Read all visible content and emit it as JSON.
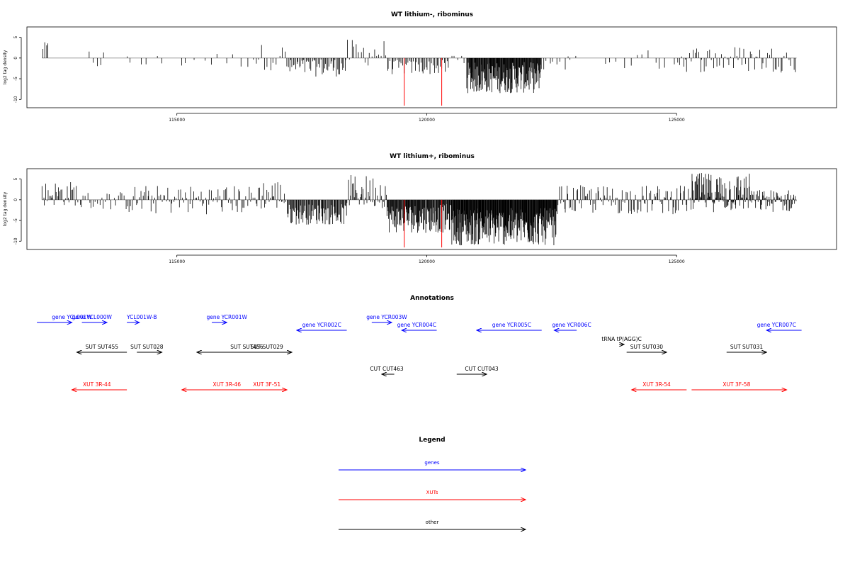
{
  "colors": {
    "gene": "#0000ff",
    "xut": "#ff0000",
    "other": "#000000",
    "axis": "#000000",
    "baseline": "#808080",
    "marker": "#ff0000"
  },
  "chart_data": [
    {
      "type": "bar",
      "title": "WT lithium-, ribominus",
      "xlabel": "",
      "ylabel": "log2 tag density",
      "xlim": [
        112000,
        128200
      ],
      "ylim": [
        -12,
        7.5
      ],
      "xticks": [
        115000,
        120000,
        125000
      ],
      "xtick_labels": [
        "115000",
        "120000",
        "125000"
      ],
      "yticks": [
        5,
        0,
        -5,
        -10
      ],
      "ytick_labels": [
        "5",
        "0",
        "-5",
        "-10"
      ],
      "grid": false,
      "markers": [
        {
          "x": 119550,
          "y": -11.5
        },
        {
          "x": 120300,
          "y": -11.5
        }
      ],
      "series": [
        {
          "segments": [
            {
              "from": 112300,
              "to": 112450,
              "bins": 4,
              "min": 1.5,
              "max": 3.8
            },
            {
              "from": 113200,
              "to": 113600,
              "bins": 5,
              "min": -3,
              "max": 2.5
            },
            {
              "from": 113900,
              "to": 114800,
              "bins": 6,
              "min": -3,
              "max": 1
            },
            {
              "from": 115000,
              "to": 116500,
              "bins": 10,
              "min": -2.5,
              "max": 1.5
            },
            {
              "from": 116500,
              "to": 117200,
              "bins": 12,
              "min": -3,
              "max": 3.5
            },
            {
              "from": 117200,
              "to": 118400,
              "bins": 50,
              "min": -4.5,
              "max": 0
            },
            {
              "from": 118400,
              "to": 119200,
              "bins": 18,
              "min": -2,
              "max": 4.5
            },
            {
              "from": 119200,
              "to": 120450,
              "bins": 45,
              "min": -4,
              "max": -0.5
            },
            {
              "from": 120450,
              "to": 120800,
              "bins": 5,
              "min": -2,
              "max": 1
            },
            {
              "from": 120800,
              "to": 122300,
              "bins": 160,
              "min": -8.5,
              "max": -1
            },
            {
              "from": 122300,
              "to": 123000,
              "bins": 10,
              "min": -3,
              "max": 1
            },
            {
              "from": 123500,
              "to": 125000,
              "bins": 12,
              "min": -3,
              "max": 2
            },
            {
              "from": 125000,
              "to": 127300,
              "bins": 60,
              "min": -3.5,
              "max": 3
            },
            {
              "from": 127350,
              "to": 127400,
              "bins": 2,
              "min": -3.8,
              "max": -2.5
            }
          ]
        }
      ]
    },
    {
      "type": "bar",
      "title": "WT lithium+, ribominus",
      "xlabel": "",
      "ylabel": "log2 tag density",
      "xlim": [
        112000,
        128200
      ],
      "ylim": [
        -12,
        7.5
      ],
      "xticks": [
        115000,
        120000,
        125000
      ],
      "xtick_labels": [
        "115000",
        "120000",
        "125000"
      ],
      "yticks": [
        5,
        0,
        -5,
        -10
      ],
      "ytick_labels": [
        "5",
        "0",
        "-5",
        "-10"
      ],
      "grid": false,
      "markers": [
        {
          "x": 119550,
          "y": -11.5
        },
        {
          "x": 120300,
          "y": -11.5
        }
      ],
      "series": [
        {
          "segments": [
            {
              "from": 112300,
              "to": 113000,
              "bins": 30,
              "min": -1.5,
              "max": 4.5
            },
            {
              "from": 113000,
              "to": 114000,
              "bins": 25,
              "min": -2.5,
              "max": 2
            },
            {
              "from": 114000,
              "to": 116600,
              "bins": 90,
              "min": -3.5,
              "max": 3.5
            },
            {
              "from": 116600,
              "to": 117200,
              "bins": 25,
              "min": -2.5,
              "max": 5
            },
            {
              "from": 117200,
              "to": 118400,
              "bins": 80,
              "min": -6,
              "max": -1
            },
            {
              "from": 118400,
              "to": 119200,
              "bins": 40,
              "min": -2,
              "max": 6
            },
            {
              "from": 119200,
              "to": 120500,
              "bins": 120,
              "min": -8,
              "max": -1
            },
            {
              "from": 120500,
              "to": 122600,
              "bins": 260,
              "min": -11,
              "max": -2
            },
            {
              "from": 122600,
              "to": 125300,
              "bins": 110,
              "min": -3.5,
              "max": 3.5
            },
            {
              "from": 125300,
              "to": 126500,
              "bins": 100,
              "min": -3,
              "max": 6.5
            },
            {
              "from": 126500,
              "to": 127400,
              "bins": 60,
              "min": -3,
              "max": 2.5
            }
          ]
        }
      ]
    }
  ],
  "annotations": {
    "title": "Annotations",
    "features": [
      {
        "label": "gene YCL001W",
        "kind": "gene",
        "from": 112200,
        "to": 112900,
        "label_x": 112900,
        "row": 0
      },
      {
        "label": "gene YCL000W",
        "kind": "gene",
        "from": 113100,
        "to": 113600,
        "label_x": 113300,
        "row": 0
      },
      {
        "label": "YCL001W-B",
        "kind": "gene",
        "from": 114000,
        "to": 114250,
        "label_x": 114300,
        "row": 0
      },
      {
        "label": "gene YCR001W",
        "kind": "gene",
        "from": 115700,
        "to": 116000,
        "label_x": 116000,
        "row": 0
      },
      {
        "label": "gene YCR002C",
        "kind": "gene",
        "from": 118400,
        "to": 117400,
        "label_x": 117900,
        "row": 1
      },
      {
        "label": "gene YCR003W",
        "kind": "gene",
        "from": 118900,
        "to": 119300,
        "label_x": 119200,
        "row": 0
      },
      {
        "label": "gene YCR004C",
        "kind": "gene",
        "from": 120200,
        "to": 119500,
        "label_x": 119800,
        "row": 1
      },
      {
        "label": "gene YCR005C",
        "kind": "gene",
        "from": 122300,
        "to": 121000,
        "label_x": 121700,
        "row": 1
      },
      {
        "label": "gene YCR006C",
        "kind": "gene",
        "from": 123000,
        "to": 122550,
        "label_x": 122900,
        "row": 1
      },
      {
        "label": "gene YCR007C",
        "kind": "gene",
        "from": 127500,
        "to": 126800,
        "label_x": 127000,
        "row": 1
      },
      {
        "label": "tRNA tP(AGG)C",
        "kind": "other",
        "from": 123850,
        "to": 123950,
        "label_x": 123900,
        "row": 2
      },
      {
        "label": "SUT SUT455",
        "kind": "other",
        "from": 114000,
        "to": 113000,
        "label_x": 113500,
        "row": 3
      },
      {
        "label": "SUT SUT028",
        "kind": "other",
        "from": 114200,
        "to": 114700,
        "label_x": 114400,
        "row": 3
      },
      {
        "label": "SUT SUT456",
        "kind": "other",
        "from": 117300,
        "to": 115400,
        "label_x": 116400,
        "row": 3
      },
      {
        "label": "SUT SUT029",
        "kind": "other",
        "from": 116500,
        "to": 117300,
        "label_x": 116800,
        "row": 3
      },
      {
        "label": "SUT SUT030",
        "kind": "other",
        "from": 124000,
        "to": 124800,
        "label_x": 124400,
        "row": 3
      },
      {
        "label": "SUT SUT031",
        "kind": "other",
        "from": 126000,
        "to": 126800,
        "label_x": 126400,
        "row": 3
      },
      {
        "label": "CUT CUT463",
        "kind": "other",
        "from": 119350,
        "to": 119100,
        "label_x": 119200,
        "row": 4
      },
      {
        "label": "CUT CUT043",
        "kind": "other",
        "from": 120600,
        "to": 121200,
        "label_x": 121100,
        "row": 4
      },
      {
        "label": "XUT 3R-44",
        "kind": "xut",
        "from": 114000,
        "to": 112900,
        "label_x": 113400,
        "row": 5
      },
      {
        "label": "XUT 3F-51",
        "kind": "xut",
        "from": 116300,
        "to": 117200,
        "label_x": 116800,
        "row": 5
      },
      {
        "label": "XUT 3R-46",
        "kind": "xut",
        "from": 117100,
        "to": 115100,
        "label_x": 116000,
        "row": 5
      },
      {
        "label": "XUT 3R-54",
        "kind": "xut",
        "from": 125200,
        "to": 124100,
        "label_x": 124600,
        "row": 5
      },
      {
        "label": "XUT 3F-58",
        "kind": "xut",
        "from": 125300,
        "to": 127200,
        "label_x": 126200,
        "row": 5
      }
    ]
  },
  "legend": {
    "title": "Legend",
    "items": [
      {
        "label": "genes",
        "kind": "gene"
      },
      {
        "label": "XUTs",
        "kind": "xut"
      },
      {
        "label": "other",
        "kind": "other"
      }
    ]
  }
}
